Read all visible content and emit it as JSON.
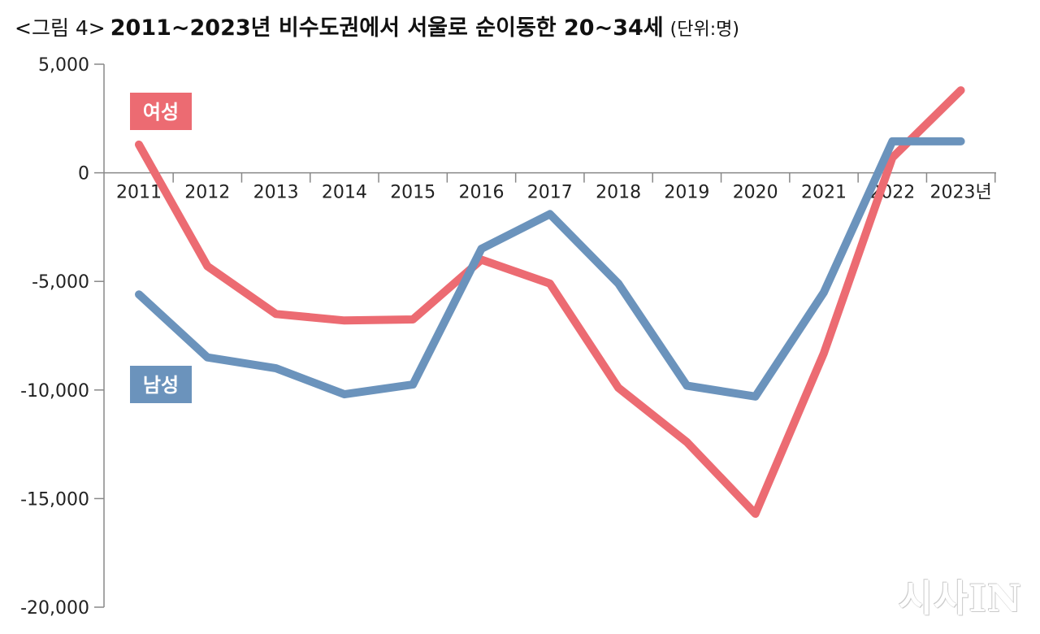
{
  "title": {
    "figure_label": "<그림 4>",
    "main": "2011~2023년 비수도권에서 서울로 순이동한 20~34세",
    "unit": "(단위:명)"
  },
  "watermark": "시사IN",
  "chart_data": {
    "type": "line",
    "categories": [
      "2011",
      "2012",
      "2013",
      "2014",
      "2015",
      "2016",
      "2017",
      "2018",
      "2019",
      "2020",
      "2021",
      "2022",
      "2023년"
    ],
    "series": [
      {
        "name": "여성",
        "color": "#ec6b72",
        "values": [
          1300,
          -4300,
          -6500,
          -6800,
          -6750,
          -4000,
          -5100,
          -9900,
          -12400,
          -15700,
          -8300,
          700,
          3800
        ]
      },
      {
        "name": "남성",
        "color": "#6b93bc",
        "values": [
          -5600,
          -8500,
          -9000,
          -10200,
          -9750,
          -3500,
          -1900,
          -5100,
          -9800,
          -10300,
          -5500,
          1450,
          1450
        ]
      }
    ],
    "y_ticks": [
      "5,000",
      "0",
      "-5,000",
      "-10,000",
      "-15,000",
      "-20,000"
    ],
    "y_tick_values": [
      5000,
      0,
      -5000,
      -10000,
      -15000,
      -20000
    ],
    "ylim": [
      -20000,
      5000
    ],
    "grid": false,
    "legend": "inline-left"
  }
}
